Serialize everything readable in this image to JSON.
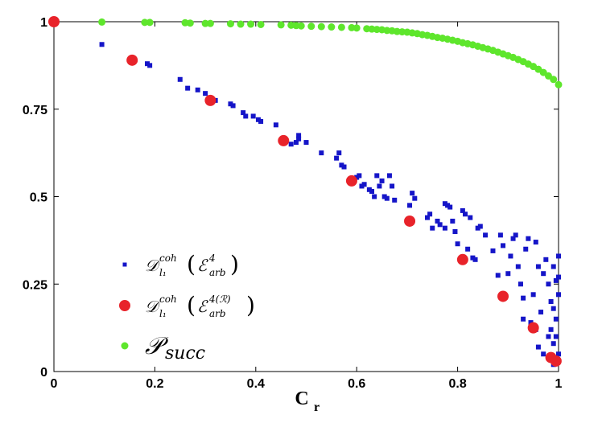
{
  "chart_data": {
    "type": "scatter",
    "xlabel": "C",
    "xlabel_sub": "r",
    "ylabel": "",
    "xlim": [
      0,
      1
    ],
    "ylim": [
      0,
      1
    ],
    "xticks": [
      "0",
      "0.2",
      "0.4",
      "0.6",
      "0.8",
      "1"
    ],
    "yticks": [
      "0",
      "0.25",
      "0.5",
      "0.75",
      "1"
    ],
    "legend_position": "bottom-left",
    "series": [
      {
        "name": "D_l1^coh (E_arb^4)",
        "legend": {
          "main": "𝒟",
          "sup": "coh",
          "sub": "l₁",
          "arg": "ℰ",
          "arg_sup": "4",
          "arg_sub": "arb"
        },
        "color": "#1515c8",
        "marker": "square",
        "points": [
          [
            0.0,
            1.0
          ],
          [
            0.095,
            0.935
          ],
          [
            0.185,
            0.88
          ],
          [
            0.19,
            0.875
          ],
          [
            0.25,
            0.835
          ],
          [
            0.265,
            0.81
          ],
          [
            0.285,
            0.805
          ],
          [
            0.3,
            0.795
          ],
          [
            0.32,
            0.775
          ],
          [
            0.35,
            0.765
          ],
          [
            0.355,
            0.76
          ],
          [
            0.375,
            0.74
          ],
          [
            0.38,
            0.73
          ],
          [
            0.395,
            0.73
          ],
          [
            0.405,
            0.72
          ],
          [
            0.41,
            0.715
          ],
          [
            0.44,
            0.705
          ],
          [
            0.47,
            0.65
          ],
          [
            0.48,
            0.655
          ],
          [
            0.485,
            0.665
          ],
          [
            0.485,
            0.675
          ],
          [
            0.5,
            0.655
          ],
          [
            0.53,
            0.625
          ],
          [
            0.56,
            0.61
          ],
          [
            0.565,
            0.625
          ],
          [
            0.57,
            0.59
          ],
          [
            0.575,
            0.585
          ],
          [
            0.6,
            0.555
          ],
          [
            0.605,
            0.56
          ],
          [
            0.61,
            0.53
          ],
          [
            0.615,
            0.535
          ],
          [
            0.625,
            0.52
          ],
          [
            0.63,
            0.515
          ],
          [
            0.635,
            0.5
          ],
          [
            0.64,
            0.56
          ],
          [
            0.645,
            0.53
          ],
          [
            0.65,
            0.545
          ],
          [
            0.655,
            0.5
          ],
          [
            0.66,
            0.495
          ],
          [
            0.665,
            0.56
          ],
          [
            0.67,
            0.53
          ],
          [
            0.675,
            0.49
          ],
          [
            0.705,
            0.475
          ],
          [
            0.71,
            0.51
          ],
          [
            0.715,
            0.495
          ],
          [
            0.74,
            0.44
          ],
          [
            0.745,
            0.45
          ],
          [
            0.75,
            0.41
          ],
          [
            0.76,
            0.43
          ],
          [
            0.765,
            0.42
          ],
          [
            0.775,
            0.41
          ],
          [
            0.775,
            0.48
          ],
          [
            0.78,
            0.475
          ],
          [
            0.785,
            0.47
          ],
          [
            0.79,
            0.43
          ],
          [
            0.795,
            0.4
          ],
          [
            0.8,
            0.365
          ],
          [
            0.81,
            0.46
          ],
          [
            0.815,
            0.45
          ],
          [
            0.82,
            0.35
          ],
          [
            0.825,
            0.44
          ],
          [
            0.83,
            0.325
          ],
          [
            0.835,
            0.32
          ],
          [
            0.84,
            0.41
          ],
          [
            0.845,
            0.415
          ],
          [
            0.855,
            0.39
          ],
          [
            0.87,
            0.345
          ],
          [
            0.88,
            0.275
          ],
          [
            0.885,
            0.39
          ],
          [
            0.89,
            0.36
          ],
          [
            0.9,
            0.28
          ],
          [
            0.905,
            0.33
          ],
          [
            0.91,
            0.38
          ],
          [
            0.915,
            0.39
          ],
          [
            0.92,
            0.3
          ],
          [
            0.925,
            0.25
          ],
          [
            0.93,
            0.21
          ],
          [
            0.935,
            0.35
          ],
          [
            0.94,
            0.38
          ],
          [
            0.945,
            0.14
          ],
          [
            0.95,
            0.22
          ],
          [
            0.955,
            0.37
          ],
          [
            0.96,
            0.3
          ],
          [
            0.965,
            0.17
          ],
          [
            0.97,
            0.28
          ],
          [
            0.975,
            0.32
          ],
          [
            0.98,
            0.25
          ],
          [
            0.985,
            0.2
          ],
          [
            0.99,
            0.08
          ],
          [
            0.995,
            0.15
          ],
          [
            1.0,
            0.33
          ],
          [
            0.99,
            0.3
          ],
          [
            0.995,
            0.26
          ],
          [
            1.0,
            0.22
          ],
          [
            0.995,
            0.1
          ],
          [
            1.0,
            0.05
          ],
          [
            0.99,
            0.02
          ],
          [
            0.985,
            0.12
          ],
          [
            0.96,
            0.07
          ],
          [
            0.97,
            0.05
          ],
          [
            0.98,
            0.1
          ],
          [
            0.955,
            0.12
          ],
          [
            0.93,
            0.15
          ],
          [
            0.99,
            0.18
          ],
          [
            1.0,
            0.27
          ]
        ]
      },
      {
        "name": "D_l1^coh (E_arb^4(R))",
        "legend": {
          "main": "𝒟",
          "sup": "coh",
          "sub": "l₁",
          "arg": "ℰ",
          "arg_sup": "4(ℛ)",
          "arg_sub": "arb"
        },
        "color": "#e8232a",
        "marker": "circle-large",
        "points": [
          [
            0.0,
            1.0
          ],
          [
            0.155,
            0.89
          ],
          [
            0.31,
            0.775
          ],
          [
            0.455,
            0.66
          ],
          [
            0.59,
            0.545
          ],
          [
            0.705,
            0.43
          ],
          [
            0.81,
            0.32
          ],
          [
            0.89,
            0.215
          ],
          [
            0.95,
            0.125
          ],
          [
            0.985,
            0.04
          ],
          [
            0.995,
            0.03
          ]
        ]
      },
      {
        "name": "P_succ",
        "legend": {
          "main": "𝒫",
          "sub": "succ"
        },
        "color": "#5ee62c",
        "marker": "circle-small",
        "points": [
          [
            0.0,
            1.0
          ],
          [
            0.095,
            0.999
          ],
          [
            0.18,
            0.998
          ],
          [
            0.19,
            0.998
          ],
          [
            0.26,
            0.997
          ],
          [
            0.27,
            0.996
          ],
          [
            0.3,
            0.995
          ],
          [
            0.31,
            0.995
          ],
          [
            0.35,
            0.994
          ],
          [
            0.37,
            0.993
          ],
          [
            0.39,
            0.993
          ],
          [
            0.41,
            0.992
          ],
          [
            0.45,
            0.991
          ],
          [
            0.47,
            0.99
          ],
          [
            0.48,
            0.989
          ],
          [
            0.49,
            0.988
          ],
          [
            0.51,
            0.987
          ],
          [
            0.53,
            0.986
          ],
          [
            0.55,
            0.985
          ],
          [
            0.57,
            0.984
          ],
          [
            0.59,
            0.983
          ],
          [
            0.6,
            0.982
          ],
          [
            0.62,
            0.98
          ],
          [
            0.63,
            0.979
          ],
          [
            0.64,
            0.978
          ],
          [
            0.65,
            0.977
          ],
          [
            0.66,
            0.975
          ],
          [
            0.67,
            0.974
          ],
          [
            0.68,
            0.972
          ],
          [
            0.69,
            0.971
          ],
          [
            0.7,
            0.97
          ],
          [
            0.71,
            0.968
          ],
          [
            0.72,
            0.966
          ],
          [
            0.73,
            0.963
          ],
          [
            0.74,
            0.961
          ],
          [
            0.75,
            0.958
          ],
          [
            0.76,
            0.955
          ],
          [
            0.77,
            0.953
          ],
          [
            0.78,
            0.95
          ],
          [
            0.79,
            0.947
          ],
          [
            0.8,
            0.944
          ],
          [
            0.81,
            0.94
          ],
          [
            0.82,
            0.937
          ],
          [
            0.83,
            0.934
          ],
          [
            0.84,
            0.93
          ],
          [
            0.85,
            0.926
          ],
          [
            0.86,
            0.922
          ],
          [
            0.87,
            0.918
          ],
          [
            0.88,
            0.913
          ],
          [
            0.89,
            0.908
          ],
          [
            0.9,
            0.903
          ],
          [
            0.91,
            0.898
          ],
          [
            0.92,
            0.892
          ],
          [
            0.93,
            0.886
          ],
          [
            0.94,
            0.879
          ],
          [
            0.95,
            0.872
          ],
          [
            0.96,
            0.864
          ],
          [
            0.97,
            0.855
          ],
          [
            0.98,
            0.845
          ],
          [
            0.99,
            0.835
          ],
          [
            1.0,
            0.82
          ]
        ]
      }
    ]
  }
}
